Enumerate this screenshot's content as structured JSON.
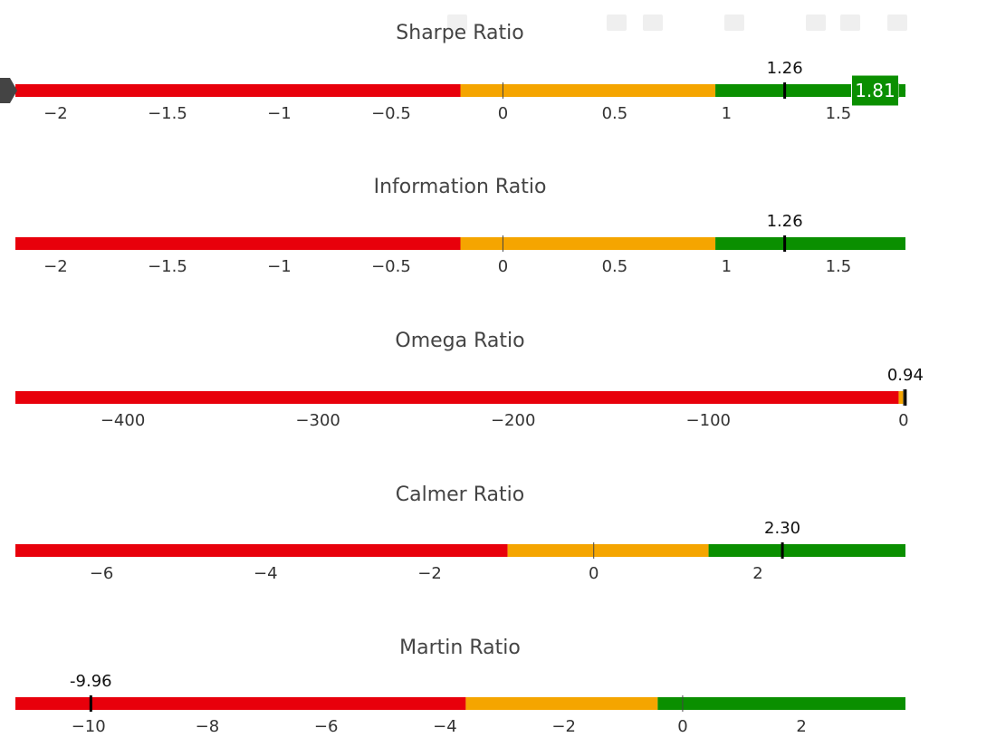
{
  "chart_data": [
    {
      "type": "bullet",
      "title": "Sharpe Ratio",
      "xlim": [
        -2.18,
        1.8
      ],
      "ticks": [
        -2,
        -1.5,
        -1,
        -0.5,
        0,
        0.5,
        1,
        1.5
      ],
      "tick_labels": [
        "−2",
        "−1.5",
        "−1",
        "−0.5",
        "0",
        "0.5",
        "1",
        "1.5"
      ],
      "bands": [
        {
          "from": -2.18,
          "to": -0.19,
          "color": "#e8000b"
        },
        {
          "from": -0.19,
          "to": 0.95,
          "color": "#f5a500"
        },
        {
          "from": 0.95,
          "to": 1.8,
          "color": "#0a8f00"
        }
      ],
      "marker": {
        "value": 1.26,
        "label": "1.26"
      },
      "hover": {
        "value": 1.81,
        "label": "1.81"
      }
    },
    {
      "type": "bullet",
      "title": "Information Ratio",
      "xlim": [
        -2.18,
        1.8
      ],
      "ticks": [
        -2,
        -1.5,
        -1,
        -0.5,
        0,
        0.5,
        1,
        1.5
      ],
      "tick_labels": [
        "−2",
        "−1.5",
        "−1",
        "−0.5",
        "0",
        "0.5",
        "1",
        "1.5"
      ],
      "bands": [
        {
          "from": -2.18,
          "to": -0.19,
          "color": "#e8000b"
        },
        {
          "from": -0.19,
          "to": 0.95,
          "color": "#f5a500"
        },
        {
          "from": 0.95,
          "to": 1.8,
          "color": "#0a8f00"
        }
      ],
      "marker": {
        "value": 1.26,
        "label": "1.26"
      }
    },
    {
      "type": "bullet",
      "title": "Omega Ratio",
      "xlim": [
        -455,
        1
      ],
      "ticks": [
        -400,
        -300,
        -200,
        -100,
        0
      ],
      "tick_labels": [
        "−400",
        "−300",
        "−200",
        "−100",
        "0"
      ],
      "bands": [
        {
          "from": -455,
          "to": -2.5,
          "color": "#e8000b"
        },
        {
          "from": -2.5,
          "to": 0.94,
          "color": "#f5a500"
        }
      ],
      "marker": {
        "value": 0.94,
        "label": "0.94"
      }
    },
    {
      "type": "bullet",
      "title": "Calmer Ratio",
      "xlim": [
        -7.05,
        3.8
      ],
      "ticks": [
        -6,
        -4,
        -2,
        0,
        2
      ],
      "tick_labels": [
        "−6",
        "−4",
        "−2",
        "0",
        "2"
      ],
      "bands": [
        {
          "from": -7.05,
          "to": -1.05,
          "color": "#e8000b"
        },
        {
          "from": -1.05,
          "to": 1.4,
          "color": "#f5a500"
        },
        {
          "from": 1.4,
          "to": 3.8,
          "color": "#0a8f00"
        }
      ],
      "marker": {
        "value": 2.3,
        "label": "2.30"
      }
    },
    {
      "type": "bullet",
      "title": "Martin Ratio",
      "xlim": [
        -11.23,
        3.75
      ],
      "ticks": [
        -10,
        -8,
        -6,
        -4,
        -2,
        0,
        2
      ],
      "tick_labels": [
        "−10",
        "−8",
        "−6",
        "−4",
        "−2",
        "0",
        "2"
      ],
      "bands": [
        {
          "from": -11.23,
          "to": -3.65,
          "color": "#e8000b"
        },
        {
          "from": -3.65,
          "to": -0.42,
          "color": "#f5a500"
        },
        {
          "from": -0.42,
          "to": 3.75,
          "color": "#0a8f00"
        }
      ],
      "marker": {
        "value": -9.96,
        "label": "-9.96"
      }
    }
  ]
}
